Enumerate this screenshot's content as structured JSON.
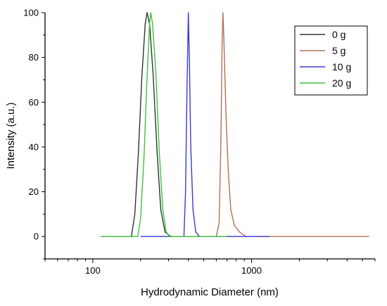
{
  "chart_data": {
    "type": "line",
    "title": "",
    "xlabel": "Hydrodynamic Diameter (nm)",
    "ylabel": "Intensity (a.u.)",
    "xscale": "log",
    "xlim": [
      50,
      6000
    ],
    "ylim": [
      -10,
      100
    ],
    "xticks": [
      100,
      1000
    ],
    "xtick_labels": [
      "100",
      "1000"
    ],
    "yticks": [
      0,
      20,
      40,
      60,
      80,
      100
    ],
    "ytick_labels": [
      "0",
      "20",
      "40",
      "60",
      "80",
      "100"
    ],
    "grid": false,
    "legend_position": "top-right",
    "series": [
      {
        "name": "0 g",
        "color": "#333333",
        "points": [
          [
            112,
            0
          ],
          [
            175,
            0
          ],
          [
            184,
            10
          ],
          [
            194,
            38
          ],
          [
            204,
            72
          ],
          [
            214,
            95
          ],
          [
            220,
            100
          ],
          [
            228,
            95
          ],
          [
            240,
            72
          ],
          [
            254,
            38
          ],
          [
            268,
            12
          ],
          [
            285,
            2
          ],
          [
            310,
            0
          ],
          [
            360,
            0
          ]
        ]
      },
      {
        "name": "5 g",
        "color": "#b0705a",
        "points": [
          [
            310,
            0
          ],
          [
            600,
            0
          ],
          [
            625,
            6
          ],
          [
            640,
            40
          ],
          [
            652,
            85
          ],
          [
            660,
            100
          ],
          [
            670,
            88
          ],
          [
            690,
            55
          ],
          [
            715,
            28
          ],
          [
            740,
            12
          ],
          [
            780,
            5
          ],
          [
            840,
            2
          ],
          [
            920,
            0
          ],
          [
            5500,
            0
          ]
        ]
      },
      {
        "name": "10 g",
        "color": "#3a3ad0",
        "points": [
          [
            200,
            0
          ],
          [
            375,
            0
          ],
          [
            384,
            20
          ],
          [
            392,
            65
          ],
          [
            400,
            100
          ],
          [
            406,
            78
          ],
          [
            414,
            40
          ],
          [
            428,
            12
          ],
          [
            445,
            2
          ],
          [
            470,
            0
          ],
          [
            1300,
            0
          ]
        ]
      },
      {
        "name": "20 g",
        "color": "#3cc43c",
        "points": [
          [
            112,
            0
          ],
          [
            192,
            0
          ],
          [
            200,
            8
          ],
          [
            210,
            35
          ],
          [
            220,
            72
          ],
          [
            228,
            95
          ],
          [
            232,
            100
          ],
          [
            238,
            95
          ],
          [
            250,
            72
          ],
          [
            262,
            38
          ],
          [
            276,
            12
          ],
          [
            290,
            2
          ],
          [
            305,
            0
          ],
          [
            700,
            0
          ]
        ]
      }
    ]
  }
}
